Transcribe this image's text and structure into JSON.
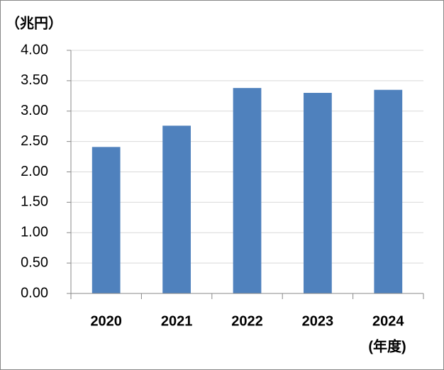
{
  "chart_data": {
    "type": "bar",
    "y_label": "（兆円）",
    "x_label": "(年度)",
    "categories": [
      "2020",
      "2021",
      "2022",
      "2023",
      "2024"
    ],
    "values": [
      2.41,
      2.76,
      3.38,
      3.3,
      3.35
    ],
    "color": "#4f81bd",
    "ylim": [
      0,
      4
    ],
    "yticks": [
      {
        "value": 0,
        "label": "0.00"
      },
      {
        "value": 0.5,
        "label": "0.50"
      },
      {
        "value": 1,
        "label": "1.00"
      },
      {
        "value": 1.5,
        "label": "1.50"
      },
      {
        "value": 2,
        "label": "2.00"
      },
      {
        "value": 2.5,
        "label": "2.50"
      },
      {
        "value": 3,
        "label": "3.00"
      },
      {
        "value": 3.5,
        "label": "3.50"
      },
      {
        "value": 4,
        "label": "4.00"
      }
    ],
    "grid": true
  }
}
